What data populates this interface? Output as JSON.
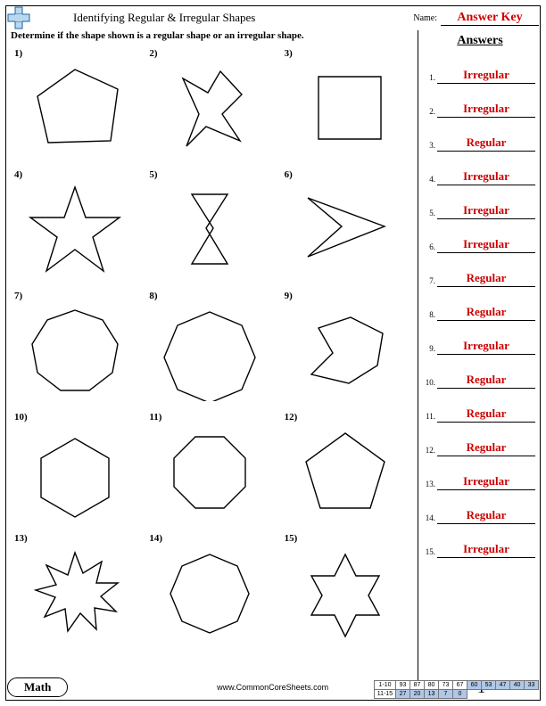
{
  "header": {
    "title": "Identifying Regular & Irregular Shapes",
    "name_label": "Name:",
    "name_value": "Answer Key"
  },
  "instruction": "Determine if the shape shown is a regular shape or an irregular shape.",
  "answers_header": "Answers",
  "answers": [
    {
      "n": "1.",
      "v": "Irregular"
    },
    {
      "n": "2.",
      "v": "Irregular"
    },
    {
      "n": "3.",
      "v": "Regular"
    },
    {
      "n": "4.",
      "v": "Irregular"
    },
    {
      "n": "5.",
      "v": "Irregular"
    },
    {
      "n": "6.",
      "v": "Irregular"
    },
    {
      "n": "7.",
      "v": "Regular"
    },
    {
      "n": "8.",
      "v": "Regular"
    },
    {
      "n": "9.",
      "v": "Irregular"
    },
    {
      "n": "10.",
      "v": "Regular"
    },
    {
      "n": "11.",
      "v": "Regular"
    },
    {
      "n": "12.",
      "v": "Regular"
    },
    {
      "n": "13.",
      "v": "Irregular"
    },
    {
      "n": "14.",
      "v": "Regular"
    },
    {
      "n": "15.",
      "v": "Irregular"
    }
  ],
  "questions": [
    {
      "n": "1)",
      "poly": "60,10 108,32 100,90 30,92 18,40"
    },
    {
      "n": "2)",
      "poly": "30,20 58,36 72,12 96,38 74,60 94,90 56,74 34,96 48,60"
    },
    {
      "n": "3)",
      "poly": "30,18 100,18 100,88 30,88"
    },
    {
      "n": "4)",
      "poly": "60,6 72,40 110,40 80,62 92,100 60,76 28,100 40,62 10,40 48,40"
    },
    {
      "n": "5)",
      "poly": "40,14 80,14 56,52 80,92 40,92 64,52"
    },
    {
      "n": "6)",
      "poly": "18,18 104,50 18,84 56,50"
    },
    {
      "n": "7)",
      "poly": "60,8 91,19 108,46 102,78 76,98 44,98 18,78 12,46 29,19"
    },
    {
      "n": "8)",
      "poly": "60,10 96,25 111,61 96,97 60,112 24,97 9,61 24,25",
      "scale": "0.85"
    },
    {
      "n": "9)",
      "poly": "30,28 66,16 102,34 96,70 64,90 22,80 46,56"
    },
    {
      "n": "10)",
      "poly": "60,16 98,38 98,82 60,104 22,82 22,38",
      "scale": "0.9"
    },
    {
      "n": "11)",
      "poly": "44,14 76,14 100,38 100,70 76,94 44,94 20,70 20,38"
    },
    {
      "n": "12)",
      "poly": "60,10 104,42 88,94 32,94 16,42"
    },
    {
      "n": "13)",
      "poly": "60,8 69,31 90,18 84,42 108,42 89,57 106,74 82,70 84,94 66,76 52,96 49,71 26,80 38,58 16,50 39,44 28,22 52,33"
    },
    {
      "n": "14)",
      "poly": "60,10 91,23 104,54 91,85 60,98 29,85 16,54 29,23",
      "scale": "1.0"
    },
    {
      "n": "15)",
      "poly": "60,10 72,34 98,34 86,56 98,78 72,78 60,102 48,78 22,78 34,56 22,34 48,34"
    }
  ],
  "footer": {
    "badge": "Math",
    "site": "www.CommonCoreSheets.com",
    "page": "1",
    "score_rows": [
      {
        "label": "1-10",
        "cells": [
          "93",
          "87",
          "80",
          "73",
          "67",
          "60",
          "53",
          "47",
          "40",
          "33"
        ],
        "hl_from": 5
      },
      {
        "label": "11-15",
        "cells": [
          "27",
          "20",
          "13",
          "7",
          "0"
        ],
        "hl_from": 0
      }
    ]
  },
  "colors": {
    "answer_red": "#cc0000",
    "score_hl": "#b0c8e8"
  }
}
